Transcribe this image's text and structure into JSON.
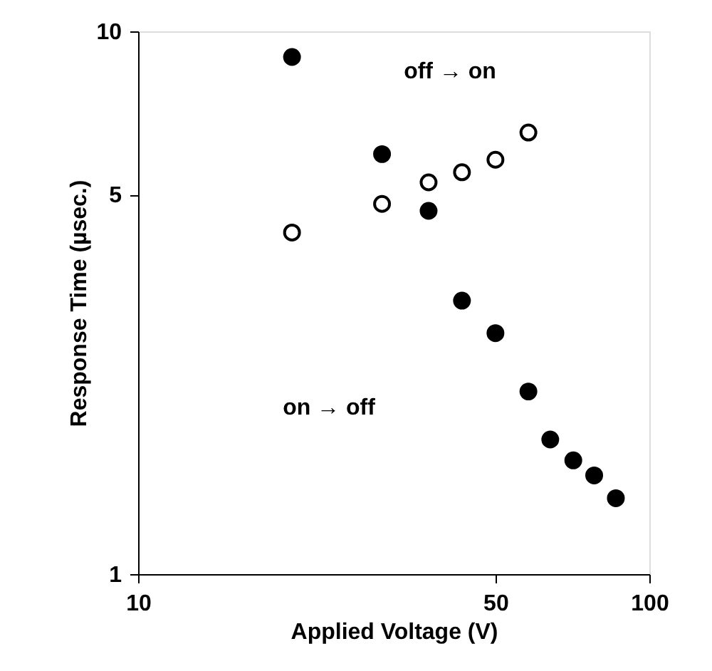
{
  "chart_data": {
    "type": "scatter",
    "xlabel": "Applied Voltage (V)",
    "ylabel": "Response Time (µsec.)",
    "log": "xy",
    "xlim": [
      10,
      100
    ],
    "ylim": [
      1,
      10
    ],
    "xticks": [
      10,
      50,
      100
    ],
    "yticks": [
      1,
      5,
      10
    ],
    "grid": false,
    "marker": "circle",
    "series": [
      {
        "color": "#000000",
        "x": [
          20,
          30,
          37,
          43,
          50,
          58,
          64,
          71,
          78,
          86
        ],
        "values": [
          8.97,
          5.94,
          4.67,
          3.19,
          2.78,
          2.17,
          1.77,
          1.62,
          1.52,
          1.38
        ]
      },
      {
        "color": "#ffffff",
        "x": [
          20,
          30,
          37,
          43,
          50,
          58
        ],
        "values": [
          4.26,
          4.81,
          5.27,
          5.5,
          5.8,
          6.51
        ]
      }
    ],
    "annotations": [
      "off → on",
      "on → off"
    ]
  }
}
